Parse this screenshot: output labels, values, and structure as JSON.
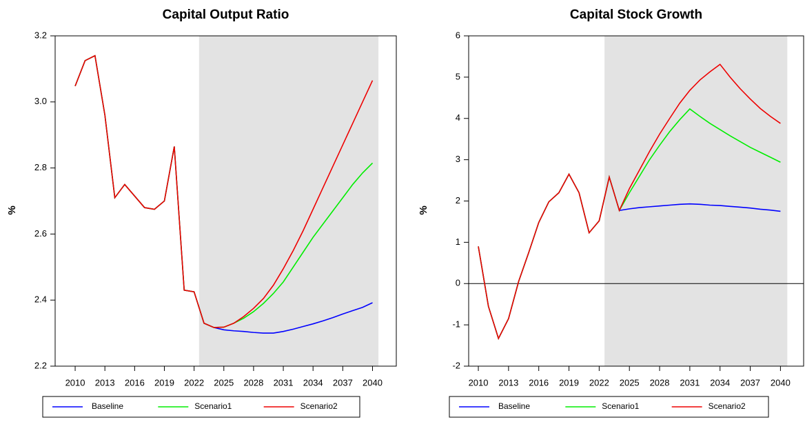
{
  "chart_data": [
    {
      "type": "line",
      "title": "Capital Output Ratio",
      "y_label": "%",
      "x": [
        2010,
        2011,
        2012,
        2013,
        2014,
        2015,
        2016,
        2017,
        2018,
        2019,
        2020,
        2021,
        2022,
        2023,
        2024,
        2025,
        2026,
        2027,
        2028,
        2029,
        2030,
        2031,
        2032,
        2033,
        2034,
        2035,
        2036,
        2037,
        2038,
        2039,
        2040
      ],
      "series": [
        {
          "name": "Baseline",
          "color": "#0000ff",
          "values": [
            3.048,
            3.125,
            3.14,
            2.96,
            2.71,
            2.75,
            2.715,
            2.68,
            2.675,
            2.7,
            2.865,
            2.43,
            2.425,
            2.33,
            2.317,
            2.31,
            2.307,
            2.305,
            2.302,
            2.3,
            2.3,
            2.305,
            2.312,
            2.32,
            2.328,
            2.337,
            2.347,
            2.358,
            2.368,
            2.378,
            2.392
          ]
        },
        {
          "name": "Scenario1",
          "color": "#00ee00",
          "values": [
            3.048,
            3.125,
            3.14,
            2.96,
            2.71,
            2.75,
            2.715,
            2.68,
            2.675,
            2.7,
            2.865,
            2.43,
            2.425,
            2.33,
            2.317,
            2.318,
            2.33,
            2.345,
            2.365,
            2.39,
            2.42,
            2.455,
            2.5,
            2.545,
            2.59,
            2.63,
            2.67,
            2.71,
            2.75,
            2.785,
            2.815
          ]
        },
        {
          "name": "Scenario2",
          "color": "#ee0000",
          "values": [
            3.048,
            3.125,
            3.14,
            2.96,
            2.71,
            2.75,
            2.715,
            2.68,
            2.675,
            2.7,
            2.865,
            2.43,
            2.425,
            2.33,
            2.317,
            2.318,
            2.33,
            2.35,
            2.375,
            2.405,
            2.445,
            2.495,
            2.55,
            2.61,
            2.675,
            2.74,
            2.805,
            2.87,
            2.935,
            3.0,
            3.065
          ]
        }
      ],
      "xlim": [
        2007.98,
        2042.4
      ],
      "xticks": [
        2010,
        2013,
        2016,
        2019,
        2022,
        2025,
        2028,
        2031,
        2034,
        2037,
        2040
      ],
      "ylim": [
        2.2,
        3.2
      ],
      "yticks": [
        2.2,
        2.4,
        2.6,
        2.8,
        {
          "value": 3,
          "label": "3.0"
        },
        3.2
      ],
      "shaded_region": [
        2022.5,
        2040.6
      ],
      "shade_color": "#e3e3e3"
    },
    {
      "type": "line",
      "title": "Capital Stock Growth",
      "y_label": "%",
      "x": [
        2010,
        2011,
        2012,
        2013,
        2014,
        2015,
        2016,
        2017,
        2018,
        2019,
        2020,
        2021,
        2022,
        2023,
        2024,
        2025,
        2026,
        2027,
        2028,
        2029,
        2030,
        2031,
        2032,
        2033,
        2034,
        2035,
        2036,
        2037,
        2038,
        2039,
        2040
      ],
      "series": [
        {
          "name": "Baseline",
          "color": "#0000ff",
          "values": [
            0.9,
            -0.55,
            -1.33,
            -0.85,
            0.05,
            0.75,
            1.48,
            1.98,
            2.2,
            2.65,
            2.2,
            1.23,
            1.52,
            2.58,
            1.77,
            1.81,
            1.84,
            1.86,
            1.88,
            1.9,
            1.92,
            1.93,
            1.92,
            1.9,
            1.89,
            1.87,
            1.85,
            1.83,
            1.8,
            1.78,
            1.75
          ]
        },
        {
          "name": "Scenario1",
          "color": "#00ee00",
          "values": [
            0.9,
            -0.55,
            -1.33,
            -0.85,
            0.05,
            0.75,
            1.48,
            1.98,
            2.2,
            2.65,
            2.2,
            1.23,
            1.52,
            2.58,
            1.77,
            2.2,
            2.6,
            3.0,
            3.35,
            3.68,
            3.97,
            4.23,
            4.05,
            3.88,
            3.73,
            3.58,
            3.44,
            3.3,
            3.18,
            3.06,
            2.94
          ]
        },
        {
          "name": "Scenario2",
          "color": "#ee0000",
          "values": [
            0.9,
            -0.55,
            -1.33,
            -0.85,
            0.05,
            0.75,
            1.48,
            1.98,
            2.2,
            2.65,
            2.2,
            1.23,
            1.52,
            2.58,
            1.77,
            2.3,
            2.75,
            3.2,
            3.62,
            4.0,
            4.37,
            4.68,
            4.93,
            5.13,
            5.31,
            5.0,
            4.72,
            4.47,
            4.24,
            4.05,
            3.88
          ]
        }
      ],
      "xlim": [
        2009.04,
        2042.3
      ],
      "xticks": [
        2010,
        2013,
        2016,
        2019,
        2022,
        2025,
        2028,
        2031,
        2034,
        2037,
        2040
      ],
      "ylim": [
        -2,
        6
      ],
      "yticks": [
        -2,
        -1,
        0,
        1,
        2,
        3,
        4,
        5,
        6
      ],
      "hline": 0,
      "shaded_region": [
        2022.53,
        2040.68
      ],
      "shade_color": "#e3e3e3"
    }
  ]
}
